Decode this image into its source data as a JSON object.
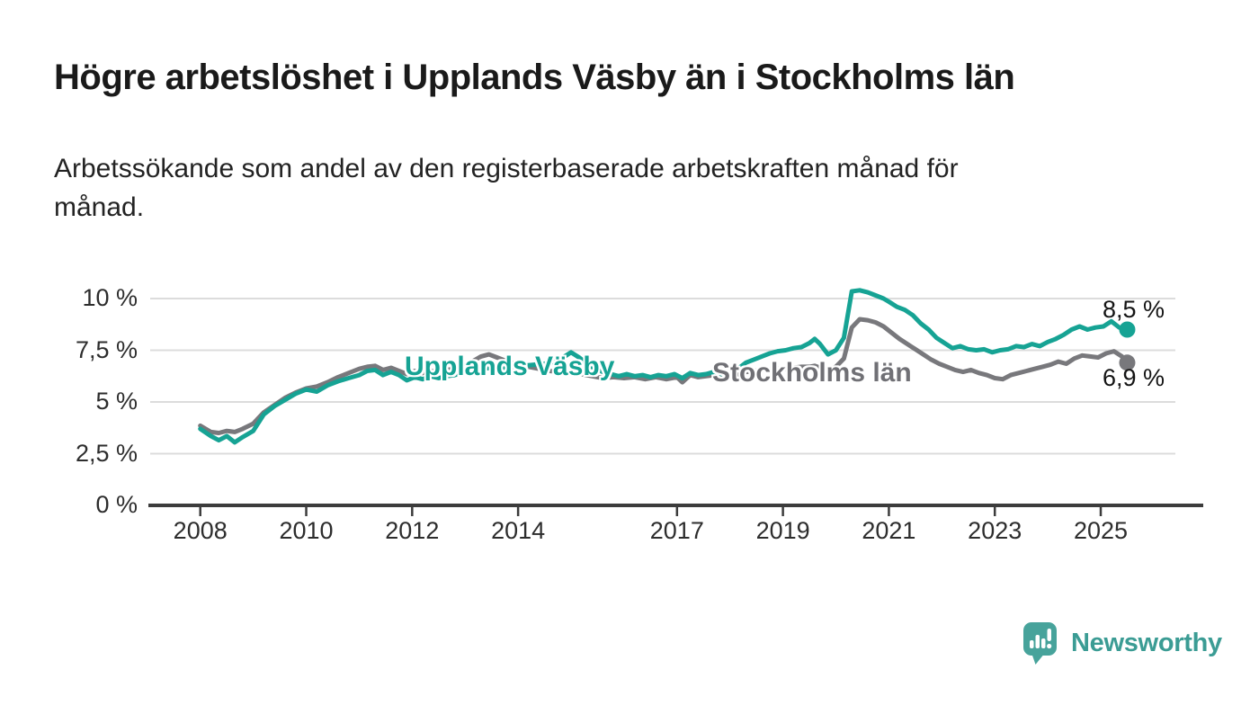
{
  "title": "Högre arbetslöshet i Upplands Väsby än i Stockholms län",
  "subtitle_lines": [
    "Arbetssökande som andel av den registerbaserade arbetskraften månad för",
    "månad."
  ],
  "branding": {
    "label": "Newsworthy",
    "logo_icon": "bar-chart-speech-bubble-icon"
  },
  "colors": {
    "accent_teal": "#16a394",
    "series_gray": "#78787c",
    "grid": "#dcdcdc",
    "axis": "#3c3c3c",
    "title_text": "#1a1a1a",
    "body_text": "#232323",
    "tick_text": "#2d2d2d",
    "logo_bubble": "#47a39b",
    "logo_text": "#3b9c94"
  },
  "chart_data": {
    "type": "line",
    "title": "Högre arbetslöshet i Upplands Väsby än i Stockholms län",
    "subtitle": "Arbetssökande som andel av den registerbaserade arbetskraften månad för månad.",
    "unit": "%",
    "grid": true,
    "legend_position": "inline-labels",
    "x_axis": {
      "tick_years": [
        2008,
        2010,
        2012,
        2014,
        2017,
        2019,
        2021,
        2023,
        2025
      ],
      "domain": [
        2007,
        2027
      ]
    },
    "y_axis": {
      "domain": [
        0,
        10.6
      ],
      "ticks": [
        {
          "value": 0,
          "label": "0 %"
        },
        {
          "value": 2.5,
          "label": "2,5 %"
        },
        {
          "value": 5,
          "label": "5 %"
        },
        {
          "value": 7.5,
          "label": "7,5 %"
        },
        {
          "value": 10,
          "label": "10 %"
        }
      ]
    },
    "series": [
      {
        "name": "Upplands Väsby",
        "color": "#16a394",
        "end_label": "8,5 %",
        "end_value": 8.5,
        "points": [
          [
            2008.0,
            3.7
          ],
          [
            2008.2,
            3.35
          ],
          [
            2008.35,
            3.15
          ],
          [
            2008.5,
            3.35
          ],
          [
            2008.65,
            3.05
          ],
          [
            2008.8,
            3.3
          ],
          [
            2009.0,
            3.6
          ],
          [
            2009.2,
            4.4
          ],
          [
            2009.4,
            4.8
          ],
          [
            2009.6,
            5.1
          ],
          [
            2009.8,
            5.4
          ],
          [
            2010.0,
            5.6
          ],
          [
            2010.2,
            5.5
          ],
          [
            2010.4,
            5.8
          ],
          [
            2010.6,
            6.0
          ],
          [
            2010.8,
            6.15
          ],
          [
            2011.0,
            6.3
          ],
          [
            2011.15,
            6.5
          ],
          [
            2011.3,
            6.55
          ],
          [
            2011.45,
            6.3
          ],
          [
            2011.6,
            6.45
          ],
          [
            2011.75,
            6.3
          ],
          [
            2011.9,
            6.05
          ],
          [
            2012.05,
            6.2
          ],
          [
            2012.2,
            6.1
          ],
          [
            2012.35,
            6.25
          ],
          [
            2012.5,
            6.15
          ],
          [
            2012.65,
            6.25
          ],
          [
            2012.8,
            6.3
          ],
          [
            2012.95,
            6.4
          ],
          [
            2013.1,
            6.5
          ],
          [
            2013.3,
            6.6
          ],
          [
            2013.5,
            6.65
          ],
          [
            2013.7,
            6.6
          ],
          [
            2013.9,
            6.7
          ],
          [
            2014.1,
            6.75
          ],
          [
            2014.3,
            6.8
          ],
          [
            2014.5,
            6.85
          ],
          [
            2014.7,
            6.95
          ],
          [
            2014.85,
            7.15
          ],
          [
            2015.0,
            7.4
          ],
          [
            2015.15,
            7.15
          ],
          [
            2015.3,
            6.85
          ],
          [
            2015.45,
            6.6
          ],
          [
            2015.6,
            6.45
          ],
          [
            2015.75,
            6.35
          ],
          [
            2015.9,
            6.25
          ],
          [
            2016.05,
            6.35
          ],
          [
            2016.2,
            6.25
          ],
          [
            2016.35,
            6.3
          ],
          [
            2016.5,
            6.2
          ],
          [
            2016.65,
            6.3
          ],
          [
            2016.8,
            6.25
          ],
          [
            2016.95,
            6.35
          ],
          [
            2017.1,
            6.15
          ],
          [
            2017.25,
            6.4
          ],
          [
            2017.4,
            6.3
          ],
          [
            2017.55,
            6.35
          ],
          [
            2017.7,
            6.45
          ],
          [
            2017.85,
            6.35
          ],
          [
            2018.0,
            6.45
          ],
          [
            2018.15,
            6.6
          ],
          [
            2018.3,
            6.9
          ],
          [
            2018.45,
            7.05
          ],
          [
            2018.6,
            7.2
          ],
          [
            2018.75,
            7.35
          ],
          [
            2018.9,
            7.45
          ],
          [
            2019.05,
            7.5
          ],
          [
            2019.2,
            7.6
          ],
          [
            2019.35,
            7.65
          ],
          [
            2019.5,
            7.85
          ],
          [
            2019.6,
            8.05
          ],
          [
            2019.7,
            7.8
          ],
          [
            2019.85,
            7.3
          ],
          [
            2020.0,
            7.5
          ],
          [
            2020.15,
            8.1
          ],
          [
            2020.3,
            10.35
          ],
          [
            2020.45,
            10.4
          ],
          [
            2020.6,
            10.3
          ],
          [
            2020.75,
            10.15
          ],
          [
            2020.9,
            10.0
          ],
          [
            2021.0,
            9.85
          ],
          [
            2021.15,
            9.6
          ],
          [
            2021.3,
            9.45
          ],
          [
            2021.45,
            9.2
          ],
          [
            2021.6,
            8.8
          ],
          [
            2021.75,
            8.5
          ],
          [
            2021.9,
            8.1
          ],
          [
            2022.05,
            7.85
          ],
          [
            2022.2,
            7.6
          ],
          [
            2022.35,
            7.7
          ],
          [
            2022.5,
            7.55
          ],
          [
            2022.65,
            7.5
          ],
          [
            2022.8,
            7.55
          ],
          [
            2022.95,
            7.4
          ],
          [
            2023.1,
            7.5
          ],
          [
            2023.25,
            7.55
          ],
          [
            2023.4,
            7.7
          ],
          [
            2023.55,
            7.65
          ],
          [
            2023.7,
            7.8
          ],
          [
            2023.85,
            7.7
          ],
          [
            2024.0,
            7.9
          ],
          [
            2024.15,
            8.05
          ],
          [
            2024.3,
            8.25
          ],
          [
            2024.45,
            8.5
          ],
          [
            2024.6,
            8.65
          ],
          [
            2024.75,
            8.5
          ],
          [
            2024.9,
            8.6
          ],
          [
            2025.05,
            8.65
          ],
          [
            2025.2,
            8.9
          ],
          [
            2025.35,
            8.6
          ],
          [
            2025.5,
            8.5
          ]
        ]
      },
      {
        "name": "Stockholms län",
        "color": "#78787c",
        "end_label": "6,9 %",
        "end_value": 6.9,
        "points": [
          [
            2008.0,
            3.85
          ],
          [
            2008.2,
            3.55
          ],
          [
            2008.35,
            3.5
          ],
          [
            2008.5,
            3.6
          ],
          [
            2008.65,
            3.55
          ],
          [
            2008.8,
            3.7
          ],
          [
            2009.0,
            3.95
          ],
          [
            2009.2,
            4.5
          ],
          [
            2009.4,
            4.85
          ],
          [
            2009.6,
            5.2
          ],
          [
            2009.8,
            5.45
          ],
          [
            2010.0,
            5.65
          ],
          [
            2010.2,
            5.75
          ],
          [
            2010.4,
            5.95
          ],
          [
            2010.6,
            6.2
          ],
          [
            2010.8,
            6.4
          ],
          [
            2011.0,
            6.6
          ],
          [
            2011.15,
            6.7
          ],
          [
            2011.3,
            6.75
          ],
          [
            2011.45,
            6.55
          ],
          [
            2011.6,
            6.65
          ],
          [
            2011.75,
            6.5
          ],
          [
            2011.9,
            6.35
          ],
          [
            2012.05,
            6.5
          ],
          [
            2012.2,
            6.4
          ],
          [
            2012.35,
            6.5
          ],
          [
            2012.5,
            6.45
          ],
          [
            2012.65,
            6.55
          ],
          [
            2012.8,
            6.6
          ],
          [
            2012.95,
            6.75
          ],
          [
            2013.1,
            6.9
          ],
          [
            2013.3,
            7.2
          ],
          [
            2013.45,
            7.3
          ],
          [
            2013.6,
            7.15
          ],
          [
            2013.8,
            6.95
          ],
          [
            2014.0,
            6.8
          ],
          [
            2014.2,
            6.7
          ],
          [
            2014.4,
            6.6
          ],
          [
            2014.6,
            6.5
          ],
          [
            2014.8,
            6.45
          ],
          [
            2015.0,
            6.4
          ],
          [
            2015.2,
            6.35
          ],
          [
            2015.4,
            6.25
          ],
          [
            2015.6,
            6.15
          ],
          [
            2015.8,
            6.2
          ],
          [
            2016.0,
            6.15
          ],
          [
            2016.2,
            6.2
          ],
          [
            2016.4,
            6.1
          ],
          [
            2016.6,
            6.2
          ],
          [
            2016.8,
            6.1
          ],
          [
            2017.0,
            6.2
          ],
          [
            2017.1,
            5.95
          ],
          [
            2017.25,
            6.3
          ],
          [
            2017.4,
            6.2
          ],
          [
            2017.55,
            6.25
          ],
          [
            2017.7,
            6.3
          ],
          [
            2017.85,
            6.15
          ],
          [
            2018.0,
            6.2
          ],
          [
            2018.15,
            6.3
          ],
          [
            2018.3,
            6.45
          ],
          [
            2018.45,
            6.5
          ],
          [
            2018.6,
            6.55
          ],
          [
            2018.75,
            6.55
          ],
          [
            2018.9,
            6.6
          ],
          [
            2019.05,
            6.6
          ],
          [
            2019.2,
            6.65
          ],
          [
            2019.35,
            6.7
          ],
          [
            2019.5,
            6.7
          ],
          [
            2019.6,
            6.75
          ],
          [
            2019.7,
            6.65
          ],
          [
            2019.85,
            6.55
          ],
          [
            2020.0,
            6.7
          ],
          [
            2020.15,
            7.1
          ],
          [
            2020.3,
            8.6
          ],
          [
            2020.45,
            9.0
          ],
          [
            2020.6,
            8.95
          ],
          [
            2020.75,
            8.85
          ],
          [
            2020.9,
            8.65
          ],
          [
            2021.05,
            8.35
          ],
          [
            2021.2,
            8.05
          ],
          [
            2021.35,
            7.8
          ],
          [
            2021.5,
            7.55
          ],
          [
            2021.65,
            7.3
          ],
          [
            2021.8,
            7.05
          ],
          [
            2021.95,
            6.85
          ],
          [
            2022.1,
            6.7
          ],
          [
            2022.25,
            6.55
          ],
          [
            2022.4,
            6.45
          ],
          [
            2022.55,
            6.55
          ],
          [
            2022.7,
            6.4
          ],
          [
            2022.85,
            6.3
          ],
          [
            2023.0,
            6.15
          ],
          [
            2023.15,
            6.1
          ],
          [
            2023.3,
            6.3
          ],
          [
            2023.45,
            6.4
          ],
          [
            2023.6,
            6.5
          ],
          [
            2023.75,
            6.6
          ],
          [
            2023.9,
            6.7
          ],
          [
            2024.05,
            6.8
          ],
          [
            2024.2,
            6.95
          ],
          [
            2024.35,
            6.85
          ],
          [
            2024.5,
            7.1
          ],
          [
            2024.65,
            7.25
          ],
          [
            2024.8,
            7.2
          ],
          [
            2024.95,
            7.15
          ],
          [
            2025.1,
            7.35
          ],
          [
            2025.25,
            7.45
          ],
          [
            2025.4,
            7.2
          ],
          [
            2025.5,
            6.9
          ]
        ]
      }
    ]
  }
}
